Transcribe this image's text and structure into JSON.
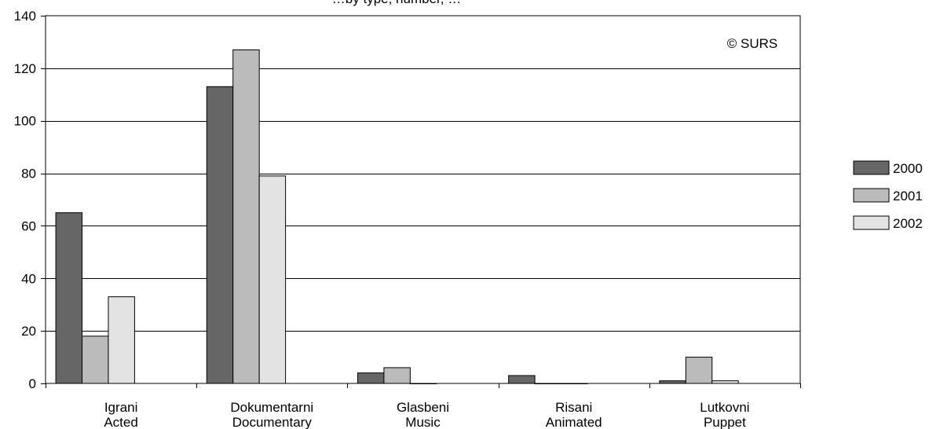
{
  "chart_data": {
    "type": "bar",
    "title": "…by type, number, …",
    "categories": [
      [
        "Igrani",
        "Acted"
      ],
      [
        "Dokumentarni",
        "Documentary"
      ],
      [
        "Glasbeni",
        "Music"
      ],
      [
        "Risani",
        "Animated"
      ],
      [
        "Lutkovni",
        "Puppet"
      ]
    ],
    "series": [
      {
        "name": "2000",
        "color": "#666666",
        "values": [
          65,
          113,
          4,
          3,
          1
        ]
      },
      {
        "name": "2001",
        "color": "#bbbbbb",
        "values": [
          18,
          127,
          6,
          0,
          10
        ]
      },
      {
        "name": "2002",
        "color": "#e3e3e3",
        "values": [
          33,
          79,
          0,
          0,
          1
        ]
      }
    ],
    "ylim": [
      0,
      140
    ],
    "yticks": [
      0,
      20,
      40,
      60,
      80,
      100,
      120,
      140
    ],
    "grid": true,
    "legend": "right",
    "annotation": "© SURS"
  }
}
